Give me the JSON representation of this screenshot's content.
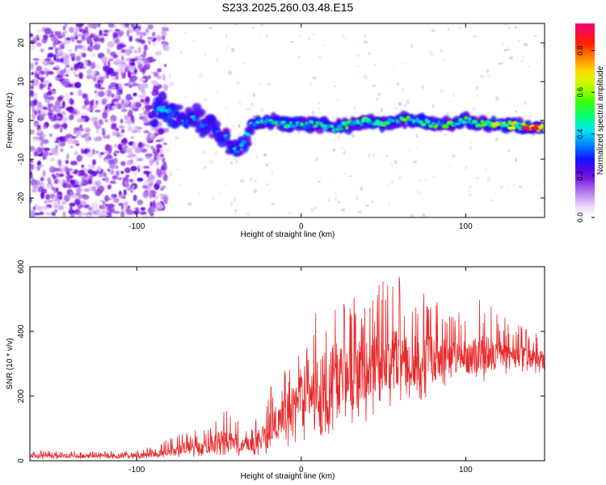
{
  "title": "S233.2025.260.03.48.E15",
  "chart_data": [
    {
      "type": "heatmap",
      "name": "spectrogram",
      "xlabel": "Height of straight line (km)",
      "ylabel": "Frequency (Hz)",
      "xlim": [
        -165,
        148
      ],
      "ylim": [
        -25,
        25
      ],
      "xticks": [
        -100,
        0,
        100
      ],
      "yticks": [
        -20,
        -10,
        0,
        10,
        20
      ],
      "colorbar": {
        "label": "Normalized spectral amplitude",
        "range": [
          0,
          0.93
        ],
        "ticks": [
          "0.0",
          "0.2",
          "0.4",
          "0.6",
          "0.8"
        ]
      },
      "noise_region_x": [
        -165,
        -90
      ],
      "signal_track": {
        "x": [
          -90,
          -85,
          -80,
          -75,
          -70,
          -65,
          -60,
          -55,
          -50,
          -45,
          -40,
          -35,
          -30,
          -25,
          -20,
          -10,
          0,
          10,
          20,
          30,
          40,
          50,
          60,
          70,
          80,
          90,
          100,
          110,
          120,
          130,
          140,
          148
        ],
        "freq": [
          1,
          3,
          2,
          1,
          -1,
          1,
          -1,
          0,
          -3,
          -5,
          -8,
          -5,
          -1,
          0,
          0,
          -1,
          -1,
          -1,
          -2,
          -1,
          0,
          -1,
          0,
          0,
          -1,
          -1,
          0,
          -1,
          -1,
          -1,
          -2,
          -2
        ],
        "peak_amplitude": [
          0.3,
          0.45,
          0.4,
          0.35,
          0.35,
          0.4,
          0.35,
          0.4,
          0.35,
          0.4,
          0.45,
          0.4,
          0.4,
          0.45,
          0.5,
          0.55,
          0.55,
          0.5,
          0.55,
          0.55,
          0.6,
          0.55,
          0.55,
          0.6,
          0.55,
          0.6,
          0.55,
          0.6,
          0.65,
          0.7,
          0.9,
          0.85
        ]
      }
    },
    {
      "type": "line",
      "name": "snr",
      "xlabel": "Height of straight line (km)",
      "ylabel": "SNR (10 * v/v)",
      "xlim": [
        -165,
        148
      ],
      "ylim": [
        0,
        600
      ],
      "xticks": [
        -100,
        0,
        100
      ],
      "yticks": [
        0,
        200,
        400,
        600
      ],
      "series": [
        {
          "name": "SNR",
          "color": "#e8292a",
          "envelope_x": [
            -165,
            -140,
            -110,
            -90,
            -80,
            -70,
            -60,
            -50,
            -40,
            -30,
            -20,
            -10,
            0,
            10,
            20,
            30,
            40,
            50,
            60,
            70,
            80,
            90,
            100,
            110,
            120,
            130,
            140,
            148
          ],
          "envelope_max": [
            35,
            30,
            30,
            45,
            70,
            100,
            90,
            170,
            140,
            110,
            230,
            280,
            350,
            480,
            530,
            560,
            520,
            560,
            590,
            540,
            520,
            480,
            450,
            520,
            460,
            430,
            400,
            380
          ],
          "envelope_median": [
            15,
            15,
            15,
            20,
            30,
            40,
            40,
            60,
            55,
            45,
            100,
            150,
            200,
            230,
            260,
            270,
            290,
            310,
            320,
            310,
            320,
            320,
            320,
            330,
            330,
            320,
            320,
            310
          ],
          "envelope_min": [
            5,
            5,
            5,
            5,
            8,
            10,
            10,
            15,
            15,
            15,
            20,
            40,
            60,
            80,
            60,
            90,
            120,
            160,
            170,
            180,
            200,
            220,
            230,
            240,
            260,
            270,
            270,
            260
          ]
        }
      ]
    }
  ]
}
